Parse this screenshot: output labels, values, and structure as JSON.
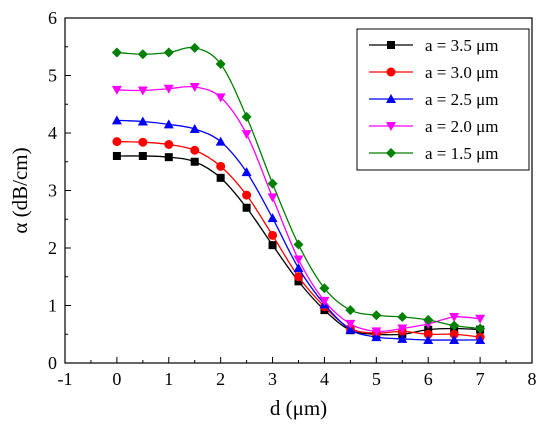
{
  "chart_data": {
    "type": "line",
    "title": "",
    "xlabel": "d (μm)",
    "ylabel": "α (dB/cm)",
    "xlim": [
      -1,
      8
    ],
    "ylim": [
      0,
      6
    ],
    "xticks": [
      "-1",
      "0",
      "1",
      "2",
      "3",
      "4",
      "5",
      "6",
      "7",
      "8"
    ],
    "yticks": [
      "0",
      "1",
      "2",
      "3",
      "4",
      "5",
      "6"
    ],
    "x": [
      0,
      0.5,
      1,
      1.5,
      2,
      2.5,
      3,
      3.5,
      4,
      4.5,
      5,
      5.5,
      6,
      6.5,
      7
    ],
    "grid": false,
    "legend_position": "top-right",
    "series": [
      {
        "name": "a = 3.5 μm",
        "color": "#000000",
        "marker": "square",
        "values": [
          3.6,
          3.6,
          3.58,
          3.5,
          3.22,
          2.7,
          2.05,
          1.42,
          0.92,
          0.57,
          0.5,
          0.5,
          0.58,
          0.6,
          0.58
        ]
      },
      {
        "name": "a = 3.0 μm",
        "color": "#ff0000",
        "marker": "circle",
        "values": [
          3.85,
          3.84,
          3.8,
          3.7,
          3.42,
          2.92,
          2.22,
          1.5,
          0.98,
          0.6,
          0.52,
          0.55,
          0.5,
          0.5,
          0.45
        ]
      },
      {
        "name": "a = 2.5 μm",
        "color": "#0000ff",
        "marker": "triangle-up",
        "values": [
          4.22,
          4.2,
          4.15,
          4.07,
          3.85,
          3.32,
          2.52,
          1.65,
          1.02,
          0.58,
          0.45,
          0.42,
          0.4,
          0.4,
          0.4
        ]
      },
      {
        "name": "a = 2.0 μm",
        "color": "#ff00ff",
        "marker": "triangle-down",
        "values": [
          4.75,
          4.74,
          4.77,
          4.8,
          4.62,
          3.98,
          2.88,
          1.8,
          1.08,
          0.68,
          0.55,
          0.6,
          0.68,
          0.8,
          0.77
        ]
      },
      {
        "name": "a = 1.5 μm",
        "color": "#008000",
        "marker": "diamond",
        "values": [
          5.4,
          5.37,
          5.4,
          5.48,
          5.2,
          4.28,
          3.12,
          2.06,
          1.3,
          0.92,
          0.83,
          0.8,
          0.75,
          0.65,
          0.6
        ]
      }
    ]
  }
}
